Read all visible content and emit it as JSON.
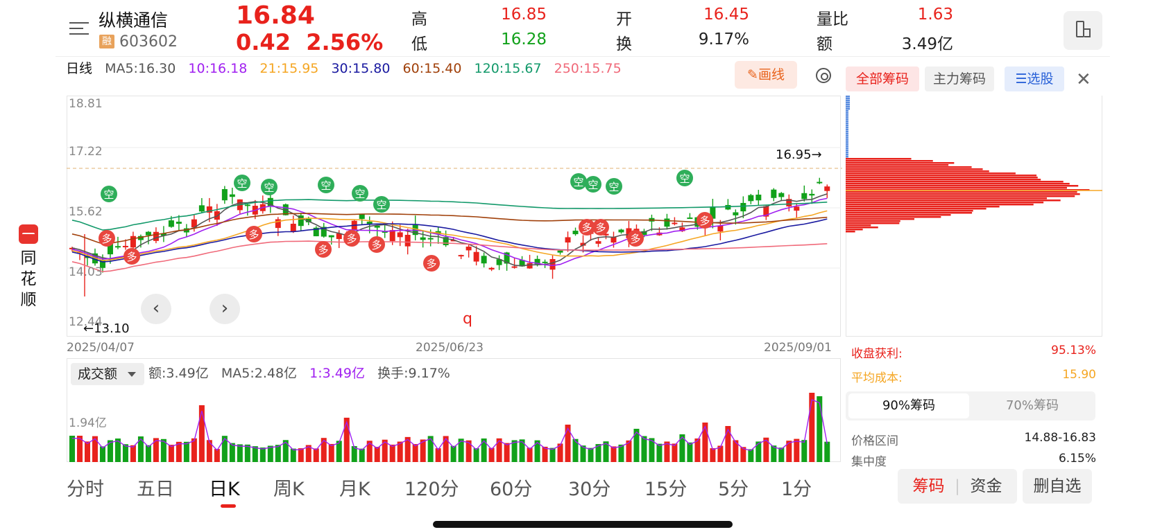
{
  "brand": {
    "name": "同花顺"
  },
  "header": {
    "stock_name": "纵横通信",
    "margin_badge": "融",
    "stock_code": "603602",
    "price": "16.84",
    "change": "0.42",
    "change_pct": "2.56%",
    "quotes": [
      {
        "label": "高",
        "value": "16.85",
        "color": "red"
      },
      {
        "label": "低",
        "value": "16.28",
        "color": "green"
      },
      {
        "label": "开",
        "value": "16.45",
        "color": "red"
      },
      {
        "label": "换",
        "value": "9.17%",
        "color": "dark"
      },
      {
        "label": "量比",
        "value": "1.63",
        "color": "red"
      },
      {
        "label": "额",
        "value": "3.49亿",
        "color": "dark"
      }
    ]
  },
  "ma_legend": {
    "period": "日线",
    "items": [
      {
        "text": "MA5:16.30",
        "color": "#555555"
      },
      {
        "text": "10:16.18",
        "color": "#a020f0"
      },
      {
        "text": "21:15.95",
        "color": "#f5a623"
      },
      {
        "text": "30:15.80",
        "color": "#1a1aa0"
      },
      {
        "text": "60:15.40",
        "color": "#a0400a"
      },
      {
        "text": "120:15.67",
        "color": "#12996a"
      },
      {
        "text": "250:15.75",
        "color": "#f06a7a"
      }
    ]
  },
  "toolbar": {
    "draw_label": "画线"
  },
  "chart": {
    "y_ticks": [
      "18.81",
      "17.22",
      "15.62",
      "14.03",
      "12.44"
    ],
    "dates": [
      "2025/04/07",
      "2025/06/23",
      "2025/09/01"
    ],
    "high_mark": "16.95→",
    "low_mark": "←13.10",
    "q_mark": "q",
    "signal_long": "多",
    "signal_short": "空"
  },
  "chip_panel": {
    "tabs": [
      "全部筹码",
      "主力筹码",
      "选股"
    ],
    "profit_label": "收盘获利:",
    "profit_value": "95.13%",
    "cost_label": "平均成本:",
    "cost_value": "15.90",
    "segments": [
      "90%筹码",
      "70%筹码"
    ],
    "range_label": "价格区间",
    "range_value": "14.88-16.83",
    "conc_label": "集中度",
    "conc_value": "6.15%"
  },
  "volume": {
    "selector": "成交额",
    "amount": "额:3.49亿",
    "ma5": "MA5:2.48亿",
    "ma1": "1:3.49亿",
    "turnover": "换手:9.17%",
    "y_tick": "1.94亿"
  },
  "period_tabs": [
    "分时",
    "五日",
    "日K",
    "周K",
    "月K",
    "120分",
    "60分",
    "30分",
    "15分",
    "5分",
    "1分"
  ],
  "active_period": "日K",
  "bottom_buttons": {
    "chips": "筹码",
    "funds": "资金",
    "remove": "删自选"
  },
  "colors": {
    "up": "#e8221c",
    "down": "#11a11a",
    "accent": "#e8631c"
  }
}
